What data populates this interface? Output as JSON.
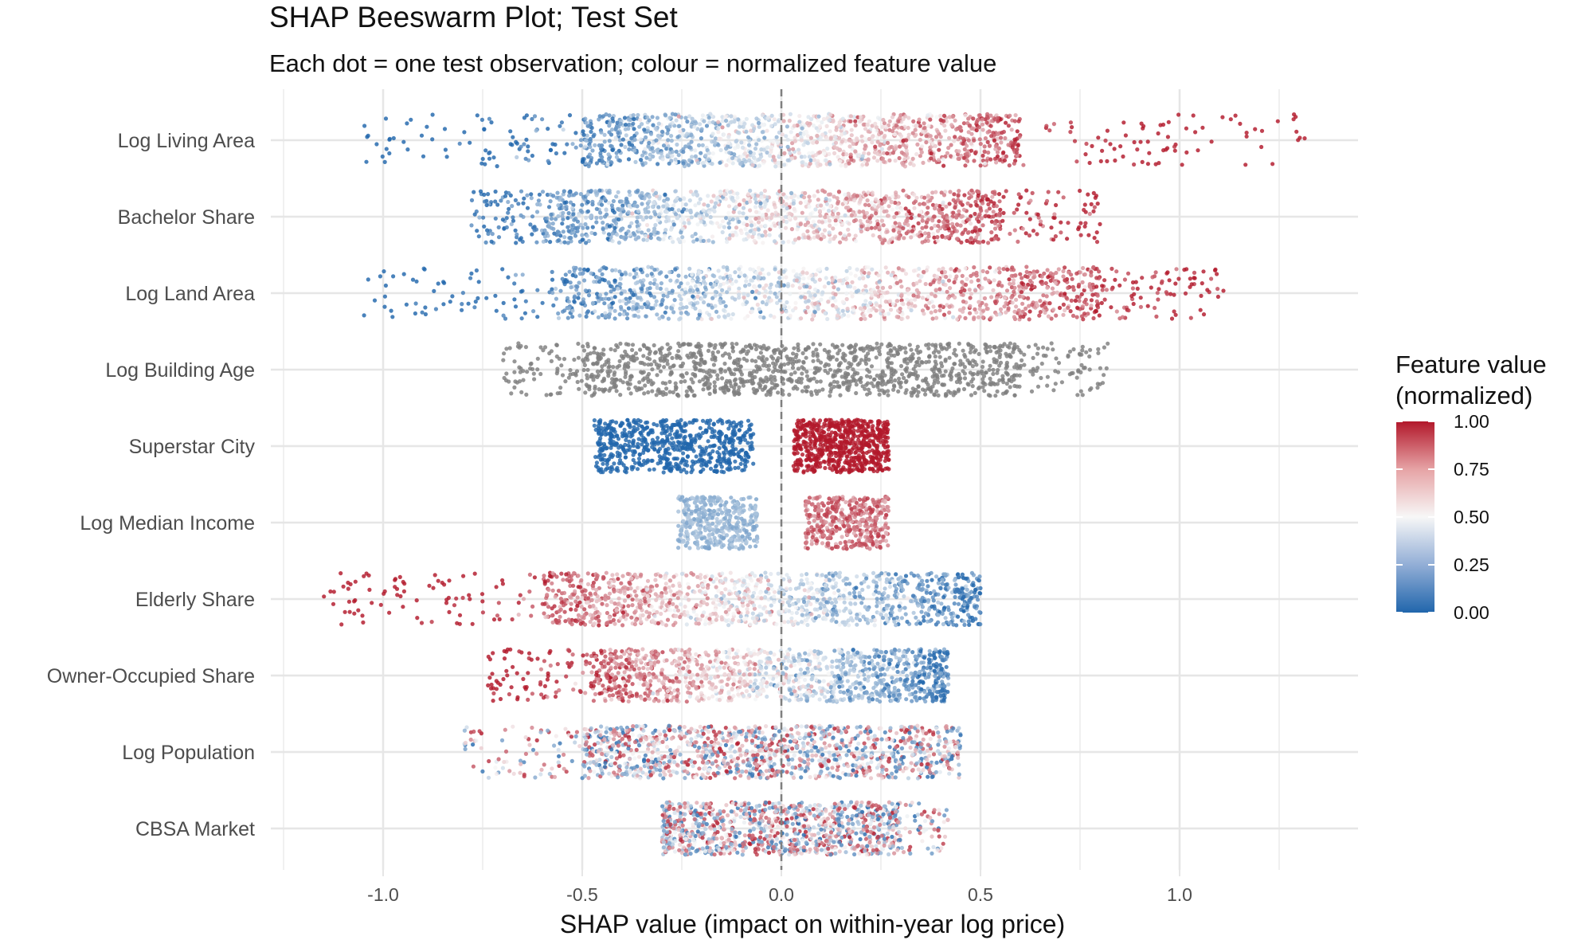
{
  "chart_data": {
    "type": "scatter",
    "subtype": "beeswarm",
    "title": "SHAP Beeswarm Plot; Test Set",
    "subtitle": "Each dot = one test observation; colour = normalized feature value",
    "xlabel": "SHAP value (impact on within-year log price)",
    "ylabel": "",
    "xlim": [
      -1.25,
      1.44
    ],
    "x_ticks": [
      -1.0,
      -0.5,
      0.0,
      0.5,
      1.0
    ],
    "x_tick_labels": [
      "-1.0",
      "-0.5",
      "0.0",
      "0.5",
      "1.0"
    ],
    "zero_line": {
      "x": 0.0,
      "style": "dashed",
      "color": "#7f7f7f"
    },
    "grid": true,
    "legend": {
      "title_lines": [
        "Feature value",
        "(normalized)"
      ],
      "placement": "right",
      "ticks": [
        1.0,
        0.75,
        0.5,
        0.25,
        0.0
      ],
      "tick_labels": [
        "1.00",
        "0.75",
        "0.50",
        "0.25",
        "0.00"
      ],
      "colors": {
        "low": "#2166ac",
        "mid": "#f7f7f7",
        "high": "#b2182b"
      }
    },
    "missing_color": "#7f7f7f",
    "categories": [
      "Log Living Area",
      "Bachelor Share",
      "Log Land Area",
      "Log Building Age",
      "Superstar City",
      "Log Median Income",
      "Elderly Share",
      "Owner-Occupied Share",
      "Log Population",
      "CBSA Market"
    ],
    "series": [
      {
        "feature": "Log Living Area",
        "shap_min": -1.05,
        "shap_max": 1.32,
        "dense_min": -0.5,
        "dense_max": 0.6,
        "n_points": 1400,
        "color_relation": "positive"
      },
      {
        "feature": "Bachelor Share",
        "shap_min": -0.78,
        "shap_max": 0.8,
        "dense_min": -0.6,
        "dense_max": 0.55,
        "n_points": 1400,
        "color_relation": "positive"
      },
      {
        "feature": "Log Land Area",
        "shap_min": -1.05,
        "shap_max": 1.11,
        "dense_min": -0.55,
        "dense_max": 0.8,
        "n_points": 1400,
        "color_relation": "positive"
      },
      {
        "feature": "Log Building Age",
        "shap_min": -0.7,
        "shap_max": 0.82,
        "dense_min": -0.5,
        "dense_max": 0.6,
        "n_points": 1300,
        "color_relation": "missing"
      },
      {
        "feature": "Superstar City",
        "shap_min": -0.47,
        "shap_max": 0.27,
        "clusters": [
          {
            "value": 0,
            "min": -0.47,
            "max": -0.07
          },
          {
            "value": 1,
            "min": 0.03,
            "max": 0.27
          }
        ],
        "n_points": 1300,
        "color_relation": "binary"
      },
      {
        "feature": "Log Median Income",
        "shap_min": -0.28,
        "shap_max": 0.28,
        "clusters": [
          {
            "level": "low",
            "min": -0.26,
            "max": -0.06
          },
          {
            "level": "high",
            "min": 0.06,
            "max": 0.27
          }
        ],
        "n_points": 800,
        "color_relation": "positive"
      },
      {
        "feature": "Elderly Share",
        "shap_min": -1.15,
        "shap_max": 0.5,
        "dense_min": -0.6,
        "dense_max": 0.45,
        "n_points": 1300,
        "color_relation": "negative"
      },
      {
        "feature": "Owner-Occupied Share",
        "shap_min": -0.74,
        "shap_max": 0.42,
        "dense_min": -0.48,
        "dense_max": 0.38,
        "n_points": 1300,
        "color_relation": "negative"
      },
      {
        "feature": "Log Population",
        "shap_min": -0.8,
        "shap_max": 0.45,
        "dense_min": -0.5,
        "dense_max": 0.38,
        "n_points": 1300,
        "color_relation": "mixed"
      },
      {
        "feature": "CBSA Market",
        "shap_min": -0.3,
        "shap_max": 0.42,
        "dense_min": -0.28,
        "dense_max": 0.3,
        "n_points": 1100,
        "color_relation": "mixed"
      }
    ]
  }
}
